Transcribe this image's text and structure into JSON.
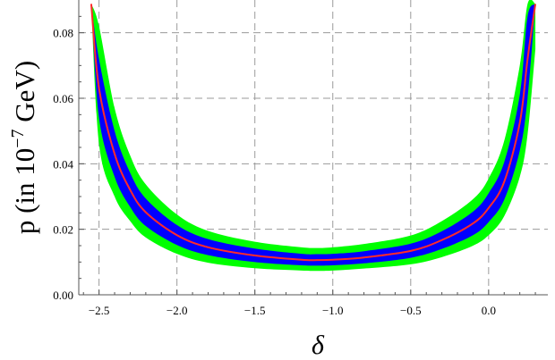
{
  "chart_data": {
    "type": "area",
    "title": "",
    "xlabel": "δ",
    "ylabel": "p (in 10",
    "ylabel_exp": "−7",
    "ylabel_tail": " GeV)",
    "xlim": [
      -2.63,
      0.38
    ],
    "ylim": [
      0,
      0.09
    ],
    "x_ticks": [
      -2.5,
      -2.0,
      -1.5,
      -1.0,
      -0.5,
      0.0
    ],
    "x_tick_labels": [
      "−2.5",
      "−2.0",
      "−1.5",
      "−1.0",
      "−0.5",
      "0.0"
    ],
    "y_ticks": [
      0.0,
      0.02,
      0.04,
      0.06,
      0.08
    ],
    "y_tick_labels": [
      "0.00",
      "0.02",
      "0.04",
      "0.06",
      "0.08"
    ],
    "grid": true,
    "x": [
      -2.55,
      -2.5,
      -2.4,
      -2.3,
      -2.2,
      -2.0,
      -1.8,
      -1.5,
      -1.2,
      -1.1,
      -1.0,
      -0.8,
      -0.5,
      -0.3,
      -0.1,
      0.0,
      0.1,
      0.2,
      0.25,
      0.3
    ],
    "series": [
      {
        "role": "outer-band-lower",
        "color": "#00ff00",
        "values": [
          0.0888,
          0.046,
          0.03,
          0.0225,
          0.0175,
          0.0125,
          0.0098,
          0.0081,
          0.0074,
          0.0073,
          0.0074,
          0.008,
          0.0093,
          0.0115,
          0.015,
          0.0182,
          0.024,
          0.036,
          0.049,
          0.075
        ]
      },
      {
        "role": "inner-band-lower",
        "color": "#0000ff",
        "values": [
          0.0888,
          0.054,
          0.036,
          0.0268,
          0.021,
          0.0152,
          0.0121,
          0.01,
          0.009,
          0.0089,
          0.009,
          0.0096,
          0.0113,
          0.014,
          0.0182,
          0.0222,
          0.029,
          0.044,
          0.06,
          0.0888
        ]
      },
      {
        "role": "central",
        "color": "#ff2a2a",
        "values": [
          0.0888,
          0.063,
          0.043,
          0.032,
          0.0252,
          0.0182,
          0.0145,
          0.012,
          0.0107,
          0.0106,
          0.0107,
          0.0114,
          0.0134,
          0.0167,
          0.0218,
          0.0265,
          0.0345,
          0.0525,
          0.072,
          0.0888
        ]
      },
      {
        "role": "inner-band-upper",
        "color": "#0000ff",
        "values": [
          0.0888,
          0.072,
          0.05,
          0.0372,
          0.0294,
          0.0213,
          0.017,
          0.0141,
          0.0125,
          0.0124,
          0.0125,
          0.0133,
          0.0156,
          0.0194,
          0.0254,
          0.031,
          0.0405,
          0.061,
          0.085,
          0.0888
        ]
      },
      {
        "role": "outer-band-upper",
        "color": "#00ff00",
        "values": [
          0.0888,
          0.082,
          0.057,
          0.0425,
          0.0337,
          0.0245,
          0.0195,
          0.0162,
          0.0145,
          0.0143,
          0.0145,
          0.0155,
          0.0181,
          0.0225,
          0.0292,
          0.0355,
          0.047,
          0.07,
          0.0888,
          0.0888
        ]
      }
    ]
  }
}
